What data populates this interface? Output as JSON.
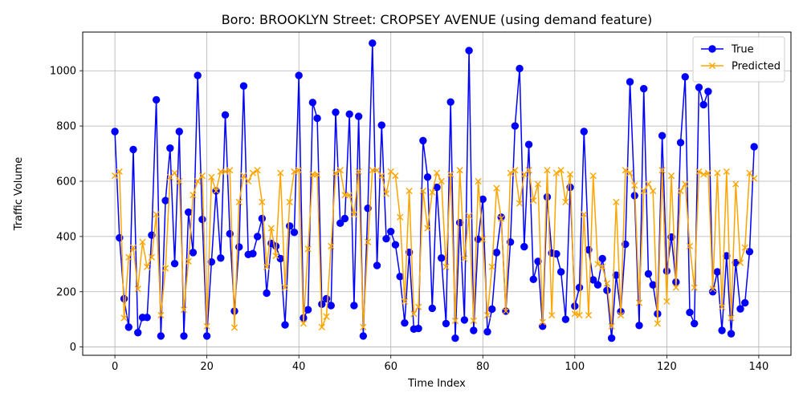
{
  "chart_data": {
    "type": "line",
    "title": "Boro: BROOKLYN Street: CROPSEY AVENUE (using demand feature)",
    "xlabel": "Time Index",
    "ylabel": "Traffic Volume",
    "xlim": [
      -7,
      147
    ],
    "ylim": [
      -30,
      1140
    ],
    "xticks": [
      0,
      20,
      40,
      60,
      80,
      100,
      120,
      140
    ],
    "yticks": [
      0,
      200,
      400,
      600,
      800,
      1000
    ],
    "grid": true,
    "legend": "top-right",
    "series": [
      {
        "name": "True",
        "color": "#0000ff",
        "marker": "circle",
        "values": [
          780,
          395,
          175,
          72,
          715,
          52,
          107,
          107,
          405,
          895,
          40,
          530,
          720,
          302,
          780,
          40,
          488,
          342,
          983,
          462,
          40,
          308,
          565,
          322,
          840,
          410,
          130,
          362,
          945,
          335,
          338,
          400,
          465,
          195,
          375,
          365,
          320,
          80,
          438,
          415,
          983,
          105,
          135,
          885,
          828,
          155,
          175,
          150,
          850,
          448,
          465,
          843,
          150,
          835,
          40,
          502,
          1100,
          295,
          803,
          392,
          418,
          370,
          255,
          87,
          343,
          65,
          67,
          747,
          615,
          140,
          578,
          322,
          85,
          887,
          32,
          450,
          98,
          1073,
          60,
          390,
          535,
          55,
          137,
          342,
          470,
          130,
          380,
          800,
          1008,
          363,
          733,
          245,
          310,
          75,
          543,
          340,
          337,
          272,
          100,
          578,
          148,
          215,
          780,
          352,
          243,
          225,
          320,
          205,
          32,
          260,
          128,
          372,
          960,
          548,
          78,
          935,
          265,
          225,
          120,
          765,
          275,
          398,
          235,
          740,
          978,
          125,
          85,
          940,
          877,
          925,
          200,
          272,
          60,
          330,
          48,
          305,
          138,
          160,
          345,
          725
        ]
      },
      {
        "name": "Predicted",
        "color": "#ffa500",
        "marker": "x",
        "values": [
          620,
          635,
          105,
          325,
          360,
          210,
          380,
          290,
          325,
          480,
          115,
          285,
          615,
          630,
          600,
          135,
          310,
          550,
          600,
          620,
          75,
          615,
          565,
          635,
          635,
          640,
          70,
          525,
          620,
          600,
          630,
          640,
          525,
          290,
          430,
          330,
          630,
          215,
          525,
          635,
          640,
          85,
          355,
          625,
          625,
          72,
          110,
          365,
          630,
          640,
          550,
          550,
          480,
          635,
          72,
          380,
          640,
          640,
          620,
          555,
          635,
          620,
          470,
          165,
          565,
          120,
          145,
          565,
          430,
          560,
          630,
          600,
          290,
          625,
          95,
          640,
          320,
          475,
          95,
          600,
          390,
          115,
          290,
          575,
          465,
          130,
          630,
          640,
          520,
          625,
          640,
          530,
          590,
          90,
          640,
          115,
          630,
          640,
          525,
          625,
          120,
          115,
          480,
          115,
          620,
          300,
          290,
          230,
          75,
          525,
          115,
          640,
          630,
          585,
          160,
          565,
          590,
          565,
          85,
          640,
          165,
          620,
          215,
          565,
          590,
          365,
          215,
          635,
          625,
          630,
          210,
          630,
          145,
          635,
          105,
          590,
          305,
          360,
          630,
          610
        ]
      }
    ]
  }
}
